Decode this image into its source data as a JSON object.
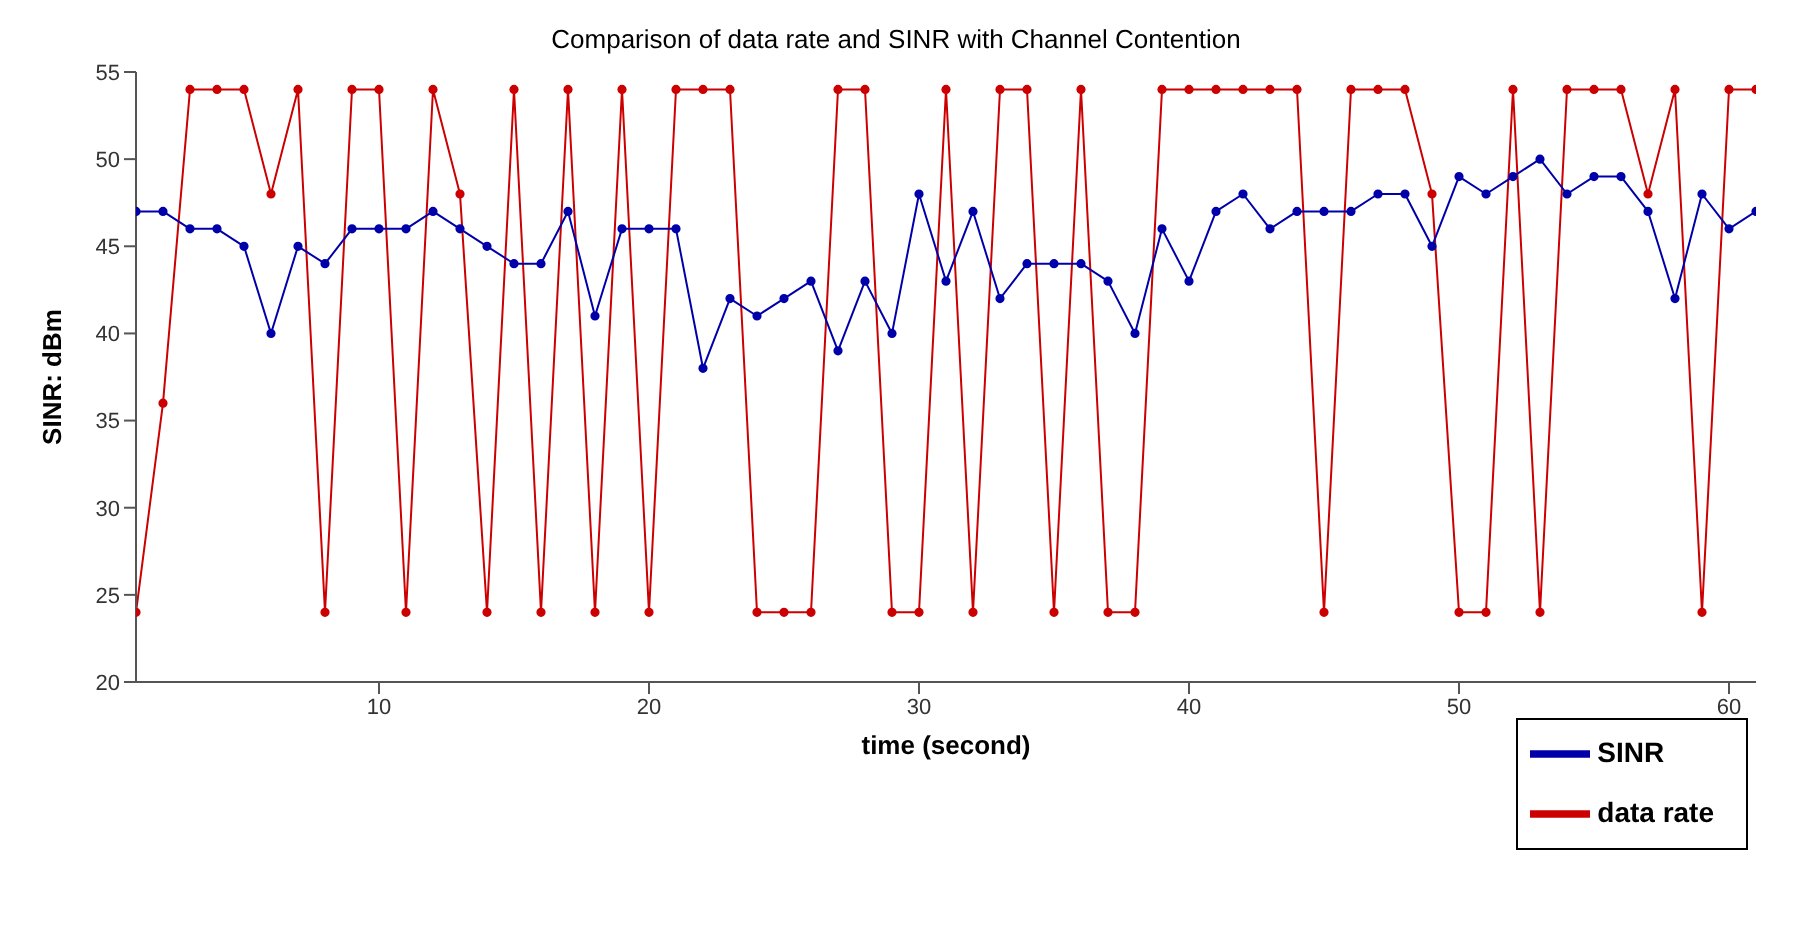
{
  "chart_data": {
    "type": "line",
    "title": "Comparison of data rate and SINR with Channel Contention",
    "xlabel": "time (second)",
    "ylabel": "SINR:  dBm",
    "x": [
      1,
      2,
      3,
      4,
      5,
      6,
      7,
      8,
      9,
      10,
      11,
      12,
      13,
      14,
      15,
      16,
      17,
      18,
      19,
      20,
      21,
      22,
      23,
      24,
      25,
      26,
      27,
      28,
      29,
      30,
      31,
      32,
      33,
      34,
      35,
      36,
      37,
      38,
      39,
      40,
      41,
      42,
      43,
      44,
      45,
      46,
      47,
      48,
      49,
      50,
      51,
      52,
      53,
      54,
      55,
      56,
      57,
      58,
      59,
      60,
      61
    ],
    "series": [
      {
        "name": "data rate",
        "color": "#cc0000",
        "values": [
          24,
          36,
          54,
          54,
          54,
          48,
          54,
          24,
          54,
          54,
          24,
          54,
          48,
          24,
          54,
          24,
          54,
          24,
          54,
          24,
          54,
          54,
          54,
          24,
          24,
          24,
          54,
          54,
          24,
          24,
          54,
          24,
          54,
          54,
          24,
          54,
          24,
          24,
          54,
          54,
          54,
          54,
          54,
          54,
          24,
          54,
          54,
          54,
          48,
          24,
          24,
          54,
          24,
          54,
          54,
          54,
          48,
          54,
          24,
          54,
          54
        ]
      },
      {
        "name": "SINR",
        "color": "#0000aa",
        "values": [
          47,
          47,
          46,
          46,
          45,
          40,
          45,
          44,
          46,
          46,
          46,
          47,
          46,
          45,
          44,
          44,
          47,
          41,
          46,
          46,
          46,
          38,
          42,
          41,
          42,
          43,
          39,
          43,
          40,
          48,
          43,
          47,
          42,
          44,
          44,
          44,
          43,
          40,
          46,
          43,
          47,
          48,
          46,
          47,
          47,
          47,
          48,
          48,
          45,
          49,
          48,
          49,
          50,
          48,
          49,
          49,
          47,
          42,
          48,
          46,
          47
        ]
      }
    ],
    "xlim": [
      1,
      61
    ],
    "xticks": [
      10,
      20,
      30,
      40,
      50,
      60
    ],
    "ylim": [
      20,
      55
    ],
    "yticks": [
      20,
      25,
      30,
      35,
      40,
      45,
      50,
      55
    ],
    "grid": false,
    "legend": "bottom right",
    "marker": "circle",
    "line_style": "solid"
  }
}
